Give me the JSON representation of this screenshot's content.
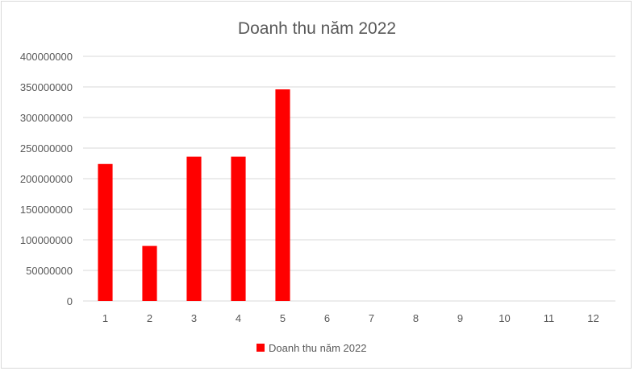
{
  "chart_data": {
    "type": "bar",
    "title": "Doanh thu năm 2022",
    "categories": [
      "1",
      "2",
      "3",
      "4",
      "5",
      "6",
      "7",
      "8",
      "9",
      "10",
      "11",
      "12"
    ],
    "series": [
      {
        "name": "Doanh thu năm 2022",
        "color": "#ff0000",
        "values": [
          224000000,
          90000000,
          236000000,
          236000000,
          346000000,
          null,
          null,
          null,
          null,
          null,
          null,
          null
        ]
      }
    ],
    "ylim": [
      0,
      400000000
    ],
    "yticks": [
      "0",
      "50000000",
      "100000000",
      "150000000",
      "200000000",
      "250000000",
      "300000000",
      "350000000",
      "400000000"
    ],
    "grid": true,
    "legend_position": "bottom",
    "colors": {
      "gridline": "#d9d9d9",
      "text": "#595959"
    }
  }
}
